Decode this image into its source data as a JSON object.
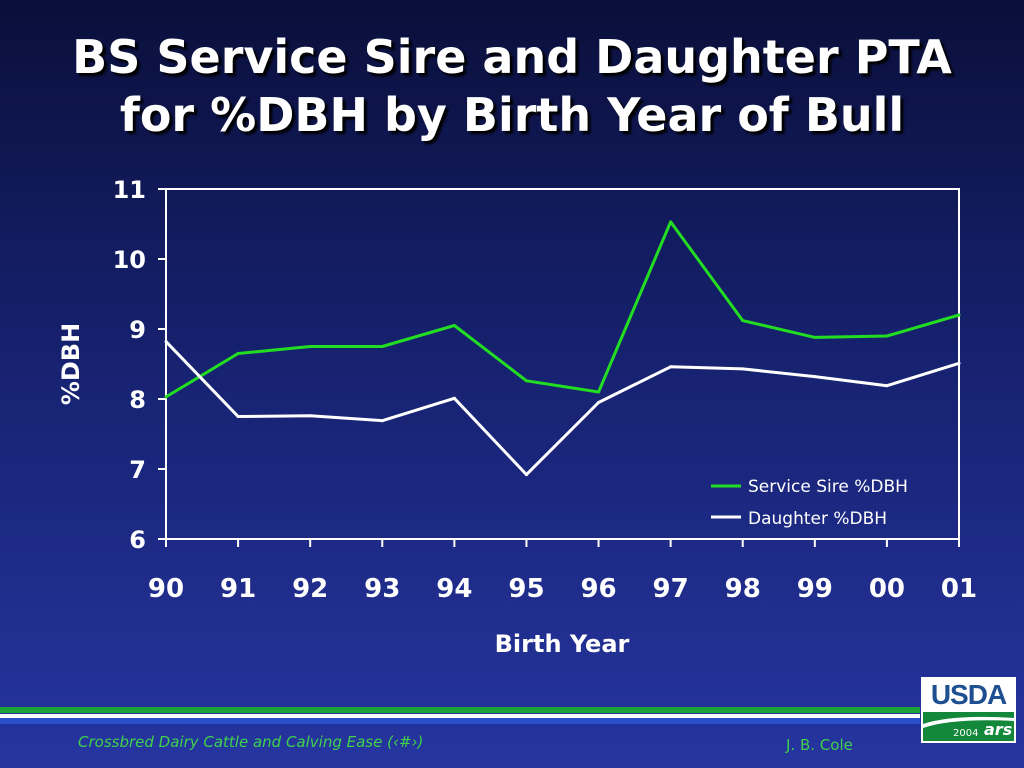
{
  "slide": {
    "title_line1": "BS Service Sire and Daughter PTA",
    "title_line2": "for %DBH by Birth Year of Bull",
    "footer_left": "Crossbred Dairy Cattle and Calving Ease (‹#›)",
    "footer_right": "J. B. Cole",
    "logo_text": "USDA",
    "logo_year": "2004",
    "logo_mark": "ars"
  },
  "colors": {
    "service_sire": "#22dd22",
    "daughter": "#ffffff",
    "footer_text": "#3fd24a",
    "usda_blue": "#1d4f91",
    "usda_green": "#13883a"
  },
  "chart_data": {
    "type": "line",
    "title": "BS Service Sire and Daughter PTA for %DBH by Birth Year of Bull",
    "xlabel": "Birth Year",
    "ylabel": "%DBH",
    "categories": [
      "90",
      "91",
      "92",
      "93",
      "94",
      "95",
      "96",
      "97",
      "98",
      "99",
      "00",
      "01"
    ],
    "ylim": [
      6,
      11
    ],
    "yticks": [
      "6",
      "7",
      "8",
      "9",
      "10",
      "11"
    ],
    "grid": false,
    "legend_position": "bottom-right",
    "series": [
      {
        "name": "Service Sire %DBH",
        "color": "#22dd22",
        "values": [
          8.03,
          8.65,
          8.75,
          8.75,
          9.05,
          8.26,
          8.1,
          10.53,
          9.12,
          8.88,
          8.9,
          9.2
        ]
      },
      {
        "name": "Daughter %DBH",
        "color": "#ffffff",
        "values": [
          8.82,
          7.75,
          7.76,
          7.69,
          8.01,
          6.92,
          7.95,
          8.46,
          8.43,
          8.32,
          8.19,
          8.51
        ]
      }
    ]
  }
}
